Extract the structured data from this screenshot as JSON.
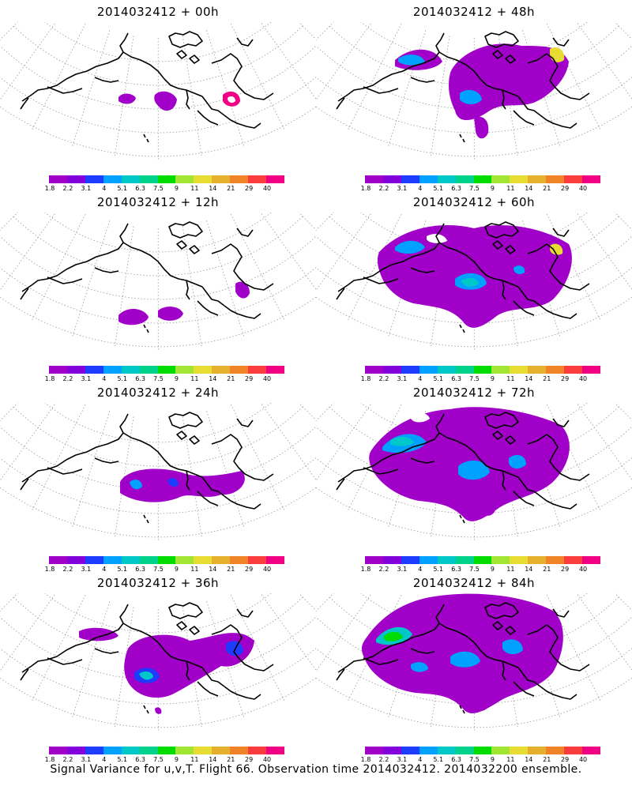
{
  "panels": [
    {
      "title": "2014032412 + 00h",
      "col": 0,
      "row": 0,
      "blobs": "p00"
    },
    {
      "title": "2014032412 + 48h",
      "col": 1,
      "row": 0,
      "blobs": "p48"
    },
    {
      "title": "2014032412 + 12h",
      "col": 0,
      "row": 1,
      "blobs": "p12"
    },
    {
      "title": "2014032412 + 60h",
      "col": 1,
      "row": 1,
      "blobs": "p60"
    },
    {
      "title": "2014032412 + 24h",
      "col": 0,
      "row": 2,
      "blobs": "p24"
    },
    {
      "title": "2014032412 + 72h",
      "col": 1,
      "row": 2,
      "blobs": "p72"
    },
    {
      "title": "2014032412 + 36h",
      "col": 0,
      "row": 3,
      "blobs": "p36"
    },
    {
      "title": "2014032412 + 84h",
      "col": 1,
      "row": 3,
      "blobs": "p84"
    }
  ],
  "colorbar": {
    "colors": [
      "#a000c8",
      "#8200dc",
      "#1e3cff",
      "#00a0ff",
      "#00c8c8",
      "#00d28c",
      "#00dc00",
      "#a0e632",
      "#e6dc32",
      "#e6af2d",
      "#f08228",
      "#fa3c3c",
      "#f00082"
    ],
    "labels": [
      "1.8",
      "2.2",
      "3.1",
      "4",
      "5.1",
      "6.3",
      "7.5",
      "9",
      "11",
      "14",
      "21",
      "29",
      "40"
    ]
  },
  "footer": "Signal Variance for u,v,T. Flight 66. Observation time 2014032412. 2014032200 ensemble."
}
